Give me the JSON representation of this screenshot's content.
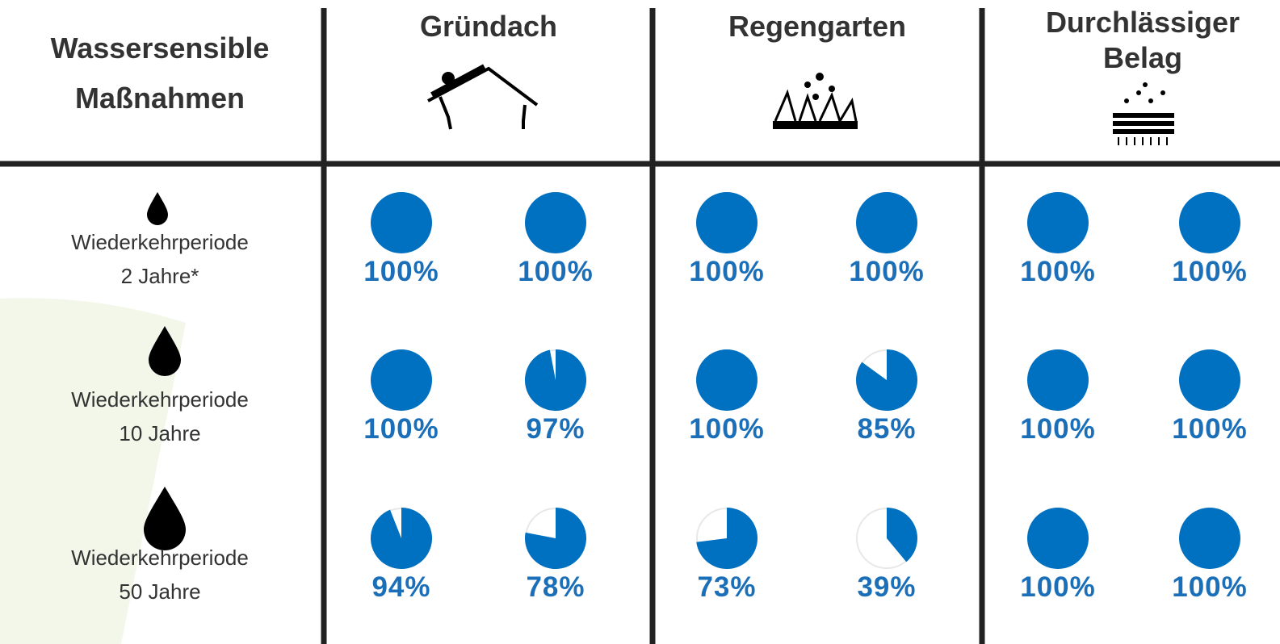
{
  "header": {
    "title_lines": [
      "Wassersensible",
      "Maßnahmen"
    ]
  },
  "columns": [
    {
      "title_lines": [
        "Gründach"
      ]
    },
    {
      "title_lines": [
        "Regengarten"
      ]
    },
    {
      "title_lines": [
        "Durchlässiger",
        "Belag"
      ]
    }
  ],
  "rows": [
    {
      "label_lines": [
        "Wiederkehrperiode",
        "2 Jahre*"
      ],
      "values": [
        100,
        100,
        100,
        100,
        100,
        100
      ],
      "value_labels": [
        "100%",
        "100%",
        "100%",
        "100%",
        "100%",
        "100%"
      ]
    },
    {
      "label_lines": [
        "Wiederkehrperiode",
        "10 Jahre"
      ],
      "values": [
        100,
        97,
        100,
        85,
        100,
        100
      ],
      "value_labels": [
        "100%",
        "97%",
        "100%",
        "85%",
        "100%",
        "100%"
      ]
    },
    {
      "label_lines": [
        "Wiederkehrperiode",
        "50 Jahre"
      ],
      "values": [
        94,
        78,
        73,
        39,
        100,
        100
      ],
      "value_labels": [
        "94%",
        "78%",
        "73%",
        "39%",
        "100%",
        "100%"
      ]
    }
  ],
  "pie_color": "#0070c0"
}
